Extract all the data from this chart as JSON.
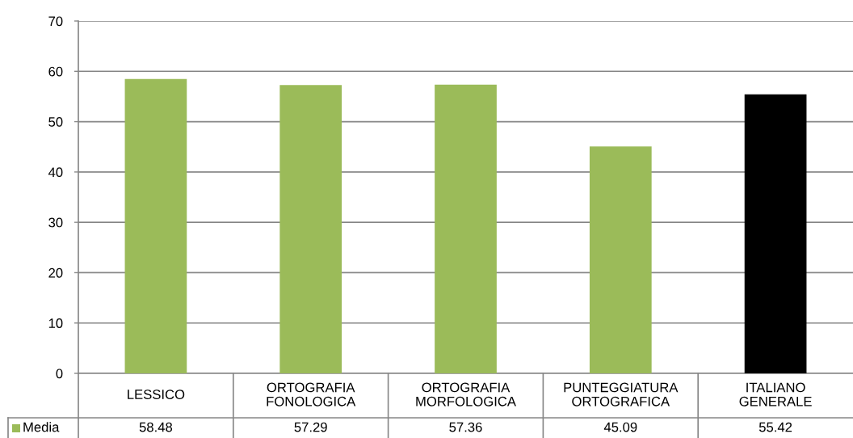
{
  "chart_data": {
    "type": "bar",
    "categories": [
      "LESSICO",
      "ORTOGRAFIA FONOLOGICA",
      "ORTOGRAFIA MORFOLOGICA",
      "PUNTEGGIATURA ORTOGRAFICA",
      "ITALIANO GENERALE"
    ],
    "series": [
      {
        "name": "Media",
        "color": "#9bbb59",
        "colors": [
          "#9bbb59",
          "#9bbb59",
          "#9bbb59",
          "#9bbb59",
          "#000000"
        ],
        "values": [
          58.48,
          57.29,
          57.36,
          45.09,
          55.42
        ]
      }
    ],
    "ylim": [
      0,
      70
    ],
    "yticks": [
      0,
      10,
      20,
      30,
      40,
      50,
      60,
      70
    ],
    "grid": "y",
    "data_labels": true,
    "legend": "bottom left"
  }
}
